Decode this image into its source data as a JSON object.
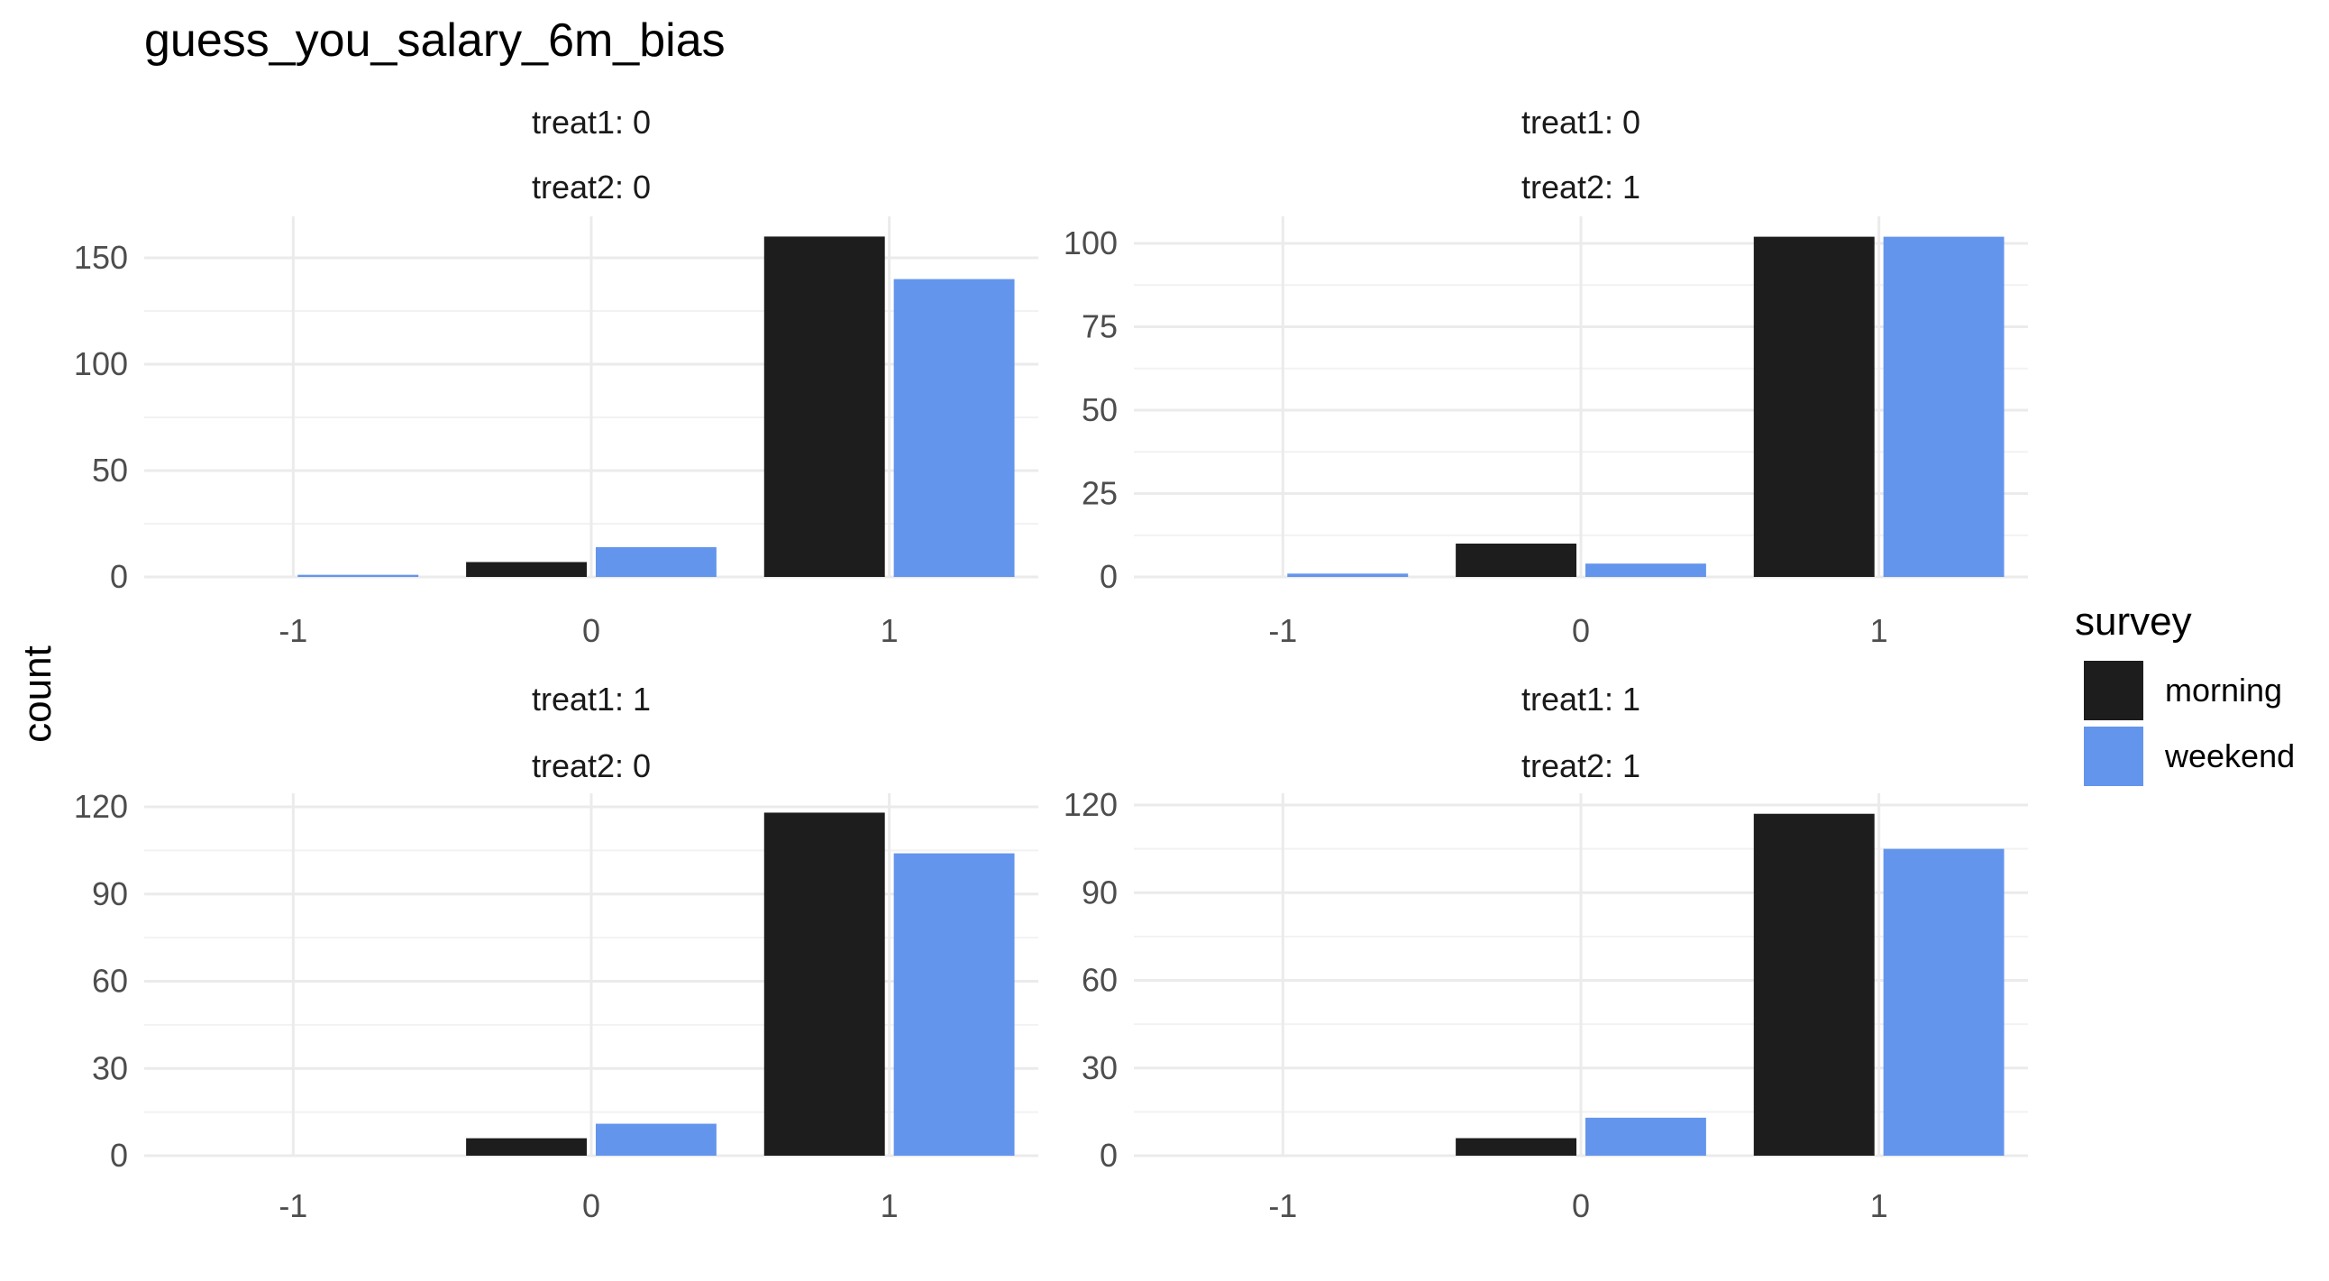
{
  "chart_data": {
    "type": "bar",
    "title": "guess_you_salary_6m_bias",
    "xlabel": "",
    "ylabel": "count",
    "x_categories": [
      "-1",
      "0",
      "1"
    ],
    "grid": true,
    "legend": {
      "title": "survey",
      "position": "right",
      "entries": [
        {
          "name": "morning",
          "color": "#1d1d1d"
        },
        {
          "name": "weekend",
          "color": "#6495ed"
        }
      ]
    },
    "panels": [
      {
        "strip": [
          "treat1: 0",
          "treat2: 0"
        ],
        "ylim": [
          0,
          160
        ],
        "yticks": [
          0,
          50,
          100,
          150
        ],
        "series": [
          {
            "name": "morning",
            "values": [
              0,
              7,
              160
            ]
          },
          {
            "name": "weekend",
            "values": [
              1,
              14,
              140
            ]
          }
        ]
      },
      {
        "strip": [
          "treat1: 0",
          "treat2: 1"
        ],
        "ylim": [
          0,
          102
        ],
        "yticks": [
          0,
          25,
          50,
          75,
          100
        ],
        "series": [
          {
            "name": "morning",
            "values": [
              0,
              10,
              102
            ]
          },
          {
            "name": "weekend",
            "values": [
              1,
              4,
              102
            ]
          }
        ]
      },
      {
        "strip": [
          "treat1: 1",
          "treat2: 0"
        ],
        "ylim": [
          0,
          120
        ],
        "yticks": [
          0,
          30,
          60,
          90,
          120
        ],
        "series": [
          {
            "name": "morning",
            "values": [
              0,
              6,
              118
            ]
          },
          {
            "name": "weekend",
            "values": [
              0,
              11,
              104
            ]
          }
        ]
      },
      {
        "strip": [
          "treat1: 1",
          "treat2: 1"
        ],
        "ylim": [
          0,
          120
        ],
        "yticks": [
          0,
          30,
          60,
          90,
          120
        ],
        "series": [
          {
            "name": "morning",
            "values": [
              0,
              6,
              117
            ]
          },
          {
            "name": "weekend",
            "values": [
              0,
              13,
              105
            ]
          }
        ]
      }
    ]
  }
}
